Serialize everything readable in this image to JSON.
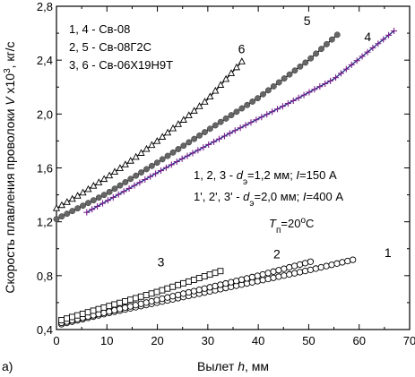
{
  "chart_data": {
    "type": "scatter",
    "panel_label": "а)",
    "xlabel_text": "Вылет ",
    "xlabel_var": "h",
    "xlabel_unit": ", мм",
    "ylabel_text": "Скорость плавления проволоки ",
    "ylabel_var": "V",
    "ylabel_mult": " x10",
    "ylabel_exp": "3",
    "ylabel_unit": ", кг/с",
    "xlim": [
      0,
      70
    ],
    "ylim": [
      0.4,
      2.8
    ],
    "xticks": [
      "0",
      "10",
      "20",
      "30",
      "40",
      "50",
      "60",
      "70"
    ],
    "yticks": [
      "0,4",
      "0,8",
      "1,2",
      "1,6",
      "2,0",
      "2,4",
      "2,8"
    ],
    "grid": false,
    "legend_entries": [
      "1, 4 - Св-08",
      "2, 5 - Св-08Г2С",
      "3, 6 - Св-06Х19Н9Т"
    ],
    "conditions": {
      "line1_prefix": "1, 2, 3 - ",
      "line1_var": "d",
      "line1_sub": "э",
      "line1_mid": "=1,2 мм; ",
      "line1_var2": "I",
      "line1_end": "=150 А",
      "line2_prefix": "1', 2', 3' - ",
      "line2_var": "d",
      "line2_sub": "э",
      "line2_mid": "=2,0 мм; ",
      "line2_var2": "I",
      "line2_end": "=400 А",
      "temp_var": "T",
      "temp_sub": "п",
      "temp_eq": "=20",
      "temp_sup": "o",
      "temp_unit": "C"
    },
    "series": [
      {
        "label": "1",
        "marker": "circle",
        "color": "#000000",
        "x": [
          1,
          10,
          20,
          30,
          40,
          50,
          59
        ],
        "y": [
          0.44,
          0.52,
          0.6,
          0.68,
          0.76,
          0.84,
          0.92
        ]
      },
      {
        "label": "2",
        "marker": "circle",
        "color": "#000000",
        "x": [
          1,
          10,
          20,
          30,
          40,
          51
        ],
        "y": [
          0.45,
          0.53,
          0.62,
          0.71,
          0.8,
          0.91
        ]
      },
      {
        "label": "3",
        "marker": "square",
        "color": "#000000",
        "x": [
          1,
          10,
          20,
          33
        ],
        "y": [
          0.47,
          0.57,
          0.68,
          0.84
        ]
      },
      {
        "label": "4",
        "marker": "plus",
        "color": "#7a1f8c",
        "line_color": "#1a2580",
        "x": [
          6,
          15,
          25,
          35,
          45,
          55,
          67
        ],
        "y": [
          1.27,
          1.46,
          1.67,
          1.87,
          2.06,
          2.26,
          2.62
        ]
      },
      {
        "label": "5",
        "marker": "filled-circle",
        "color": "#666666",
        "x": [
          0,
          10,
          20,
          30,
          40,
          50,
          56
        ],
        "y": [
          1.22,
          1.41,
          1.64,
          1.88,
          2.12,
          2.4,
          2.6
        ]
      },
      {
        "label": "6",
        "marker": "triangle",
        "color": "#000000",
        "x": [
          0,
          5,
          10,
          15,
          20,
          25,
          30,
          37
        ],
        "y": [
          1.3,
          1.41,
          1.53,
          1.66,
          1.8,
          1.95,
          2.11,
          2.4
        ]
      }
    ]
  }
}
